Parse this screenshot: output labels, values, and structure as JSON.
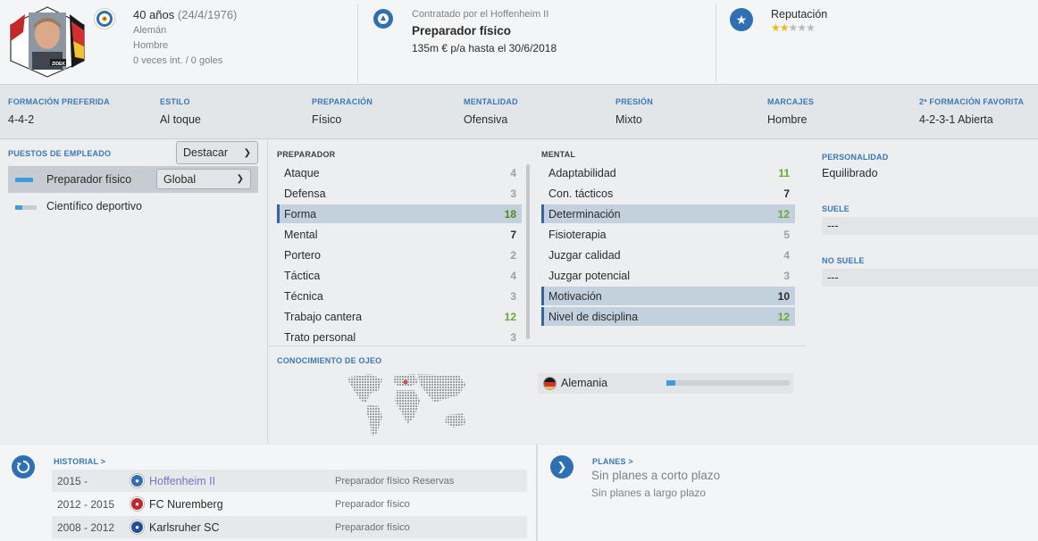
{
  "header": {
    "age": "40 años",
    "dob": "(24/4/1976)",
    "nationality": "Alemán",
    "gender": "Hombre",
    "caps": "0 veces int. / 0 goles",
    "club_label": "Contratado por el Hoffenheim II",
    "job_title": "Preparador físico",
    "contract": "135m € p/a hasta el 30/6/2018",
    "reputation_label": "Reputación",
    "reputation_stars": 2,
    "reputation_max": 5,
    "photo_name_tag": "ZIDEK"
  },
  "strip": [
    {
      "label": "FORMACIÓN PREFERIDA",
      "value": "4-4-2"
    },
    {
      "label": "ESTILO",
      "value": "Al toque"
    },
    {
      "label": "PREPARACIÓN",
      "value": "Físico"
    },
    {
      "label": "MENTALIDAD",
      "value": "Ofensiva"
    },
    {
      "label": "PRESIÓN",
      "value": "Mixto"
    },
    {
      "label": "MARCAJES",
      "value": "Hombre"
    },
    {
      "label": "2ª FORMACIÓN FAVORITA",
      "value": "4-2-3-1 Abierta"
    }
  ],
  "roles": {
    "heading": "PUESTOS DE EMPLEADO",
    "highlight_btn": "Destacar",
    "items": [
      {
        "name": "Preparador físico",
        "select": "Global",
        "level": 0.85
      },
      {
        "name": "Científico deportivo",
        "level": 0.35
      }
    ]
  },
  "coach": {
    "heading": "PREPARADOR",
    "rows": [
      {
        "name": "Ataque",
        "value": "4",
        "tone": "grey"
      },
      {
        "name": "Defensa",
        "value": "3",
        "tone": "grey"
      },
      {
        "name": "Forma",
        "value": "18",
        "tone": "dgreen",
        "highlight": true
      },
      {
        "name": "Mental",
        "value": "7",
        "tone": "dark"
      },
      {
        "name": "Portero",
        "value": "2",
        "tone": "grey"
      },
      {
        "name": "Táctica",
        "value": "4",
        "tone": "grey"
      },
      {
        "name": "Técnica",
        "value": "3",
        "tone": "grey"
      },
      {
        "name": "Trabajo cantera",
        "value": "12",
        "tone": "green"
      },
      {
        "name": "Trato personal",
        "value": "3",
        "tone": "grey"
      }
    ]
  },
  "mental": {
    "heading": "MENTAL",
    "rows": [
      {
        "name": "Adaptabilidad",
        "value": "11",
        "tone": "green"
      },
      {
        "name": "Con. tácticos",
        "value": "7",
        "tone": "dark"
      },
      {
        "name": "Determinación",
        "value": "12",
        "tone": "green",
        "highlight": true
      },
      {
        "name": "Fisioterapia",
        "value": "5",
        "tone": "grey"
      },
      {
        "name": "Juzgar calidad",
        "value": "4",
        "tone": "grey"
      },
      {
        "name": "Juzgar potencial",
        "value": "3",
        "tone": "grey"
      },
      {
        "name": "Motivación",
        "value": "10",
        "tone": "dark",
        "highlight": true
      },
      {
        "name": "Nivel de disciplina",
        "value": "12",
        "tone": "green",
        "highlight": true
      }
    ]
  },
  "scouting": {
    "heading": "CONOCIMIENTO DE OJEO",
    "country": "Alemania",
    "knowledge": 0.07
  },
  "personality": {
    "heading": "PERSONALIDAD",
    "value": "Equilibrado",
    "likes_heading": "SUELE",
    "likes_value": "---",
    "dislikes_heading": "NO SUELE",
    "dislikes_value": "---"
  },
  "history": {
    "heading": "HISTORIAL >",
    "rows": [
      {
        "years": "2015 -",
        "club": "Hoffenheim II",
        "role": "Preparador físico Reservas",
        "current": true,
        "crest": "#2f6fb3"
      },
      {
        "years": "2012 - 2015",
        "club": "FC Nuremberg",
        "role": "Preparador físico",
        "current": false,
        "crest": "#c0282d"
      },
      {
        "years": "2008 - 2012",
        "club": "Karlsruher SC",
        "role": "Preparador físico",
        "current": false,
        "crest": "#1f4f9a"
      }
    ]
  },
  "plans": {
    "heading": "PLANES >",
    "short": "Sin planes a corto plazo",
    "long": "Sin planes a largo plazo"
  },
  "colors": {
    "accent": "#3a78b5",
    "highlight": "#c3d0de",
    "bar": "#3d9be0"
  }
}
